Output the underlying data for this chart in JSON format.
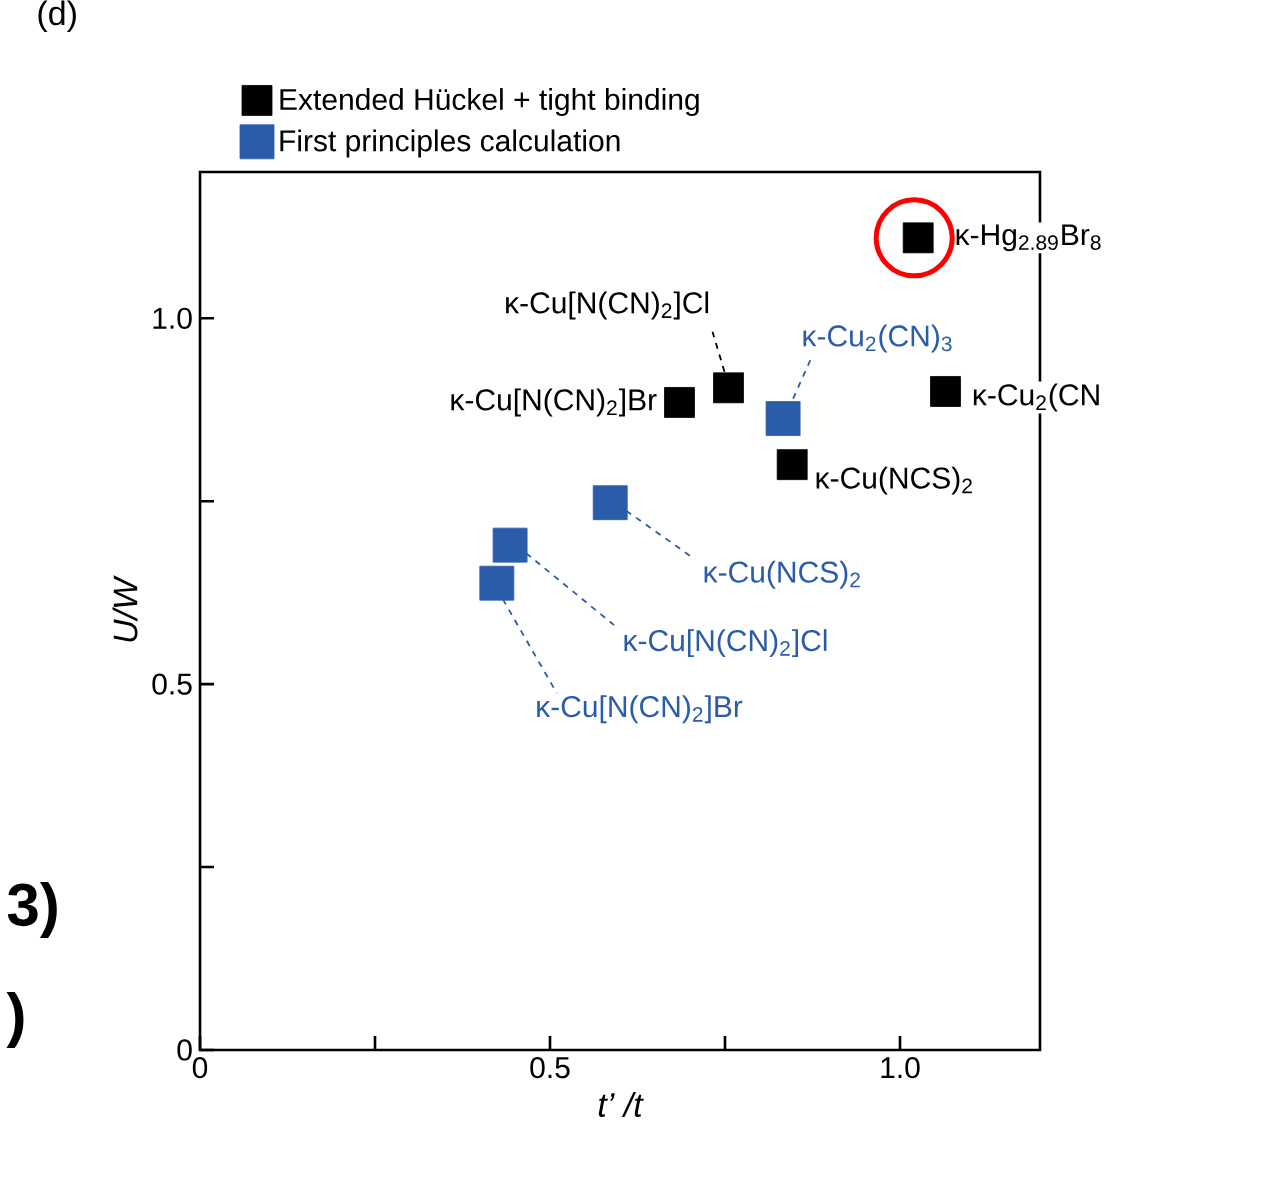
{
  "chart_data": {
    "type": "scatter",
    "xlabel": "t’ /t",
    "ylabel": "U/W",
    "xlim": [
      0,
      1.2
    ],
    "ylim": [
      0,
      1.2
    ],
    "xticks": [
      0,
      {
        "value": 0.25,
        "label": null
      },
      0.5,
      {
        "value": 0.75,
        "label": null
      },
      {
        "value": 1.0,
        "label": "1.0"
      }
    ],
    "yticks": [
      0,
      {
        "value": 0.25,
        "label": null
      },
      0.5,
      {
        "value": 0.75,
        "label": null
      },
      {
        "value": 1.0,
        "label": "1.0"
      }
    ],
    "marker": "square",
    "legend": "top",
    "grid": false,
    "series": [
      {
        "name": "Extended Hückel + tight binding",
        "color": "#000000",
        "x": [
          0.685,
          0.755,
          0.846,
          1.026,
          1.065
        ],
        "values": [
          0.885,
          0.905,
          0.8,
          1.11,
          0.9
        ]
      },
      {
        "name": "First principles calculation",
        "color": "#2a5caa",
        "x": [
          0.833,
          0.586,
          0.443,
          0.424
        ],
        "values": [
          0.863,
          0.748,
          0.69,
          0.638
        ]
      }
    ],
    "annotations": [
      "(d)",
      "3)",
      ")",
      {
        "text": "κ-Cu[N(CN)$_{2}$]Br",
        "x": 0.685,
        "y": 0.885
      },
      {
        "text": "κ-Cu[N(CN)$_{2}$]Cl",
        "x": 0.755,
        "y": 0.905
      },
      {
        "text": "κ-Cu(NCS)$_{2}$",
        "x": 0.846,
        "y": 0.8
      },
      {
        "text": "κ-Hg$_{2.89}$Br$_{8}$",
        "x": 1.026,
        "y": 1.11
      },
      {
        "text": "κ-Cu$_{2}$(CN",
        "x": 1.065,
        "y": 0.9
      },
      {
        "text": "κ-Cu$_{2}$(CN)$_{3}$",
        "x": 0.833,
        "y": 0.863
      },
      {
        "text": "κ-Cu(NCS)$_{2}$",
        "x": 0.586,
        "y": 0.748
      },
      {
        "text": "κ-Cu[N(CN)$_{2}$]Cl",
        "x": 0.443,
        "y": 0.69
      },
      {
        "text": "κ-Cu[N(CN)$_{2}$]Br",
        "x": 0.424,
        "y": 0.638
      }
    ]
  }
}
